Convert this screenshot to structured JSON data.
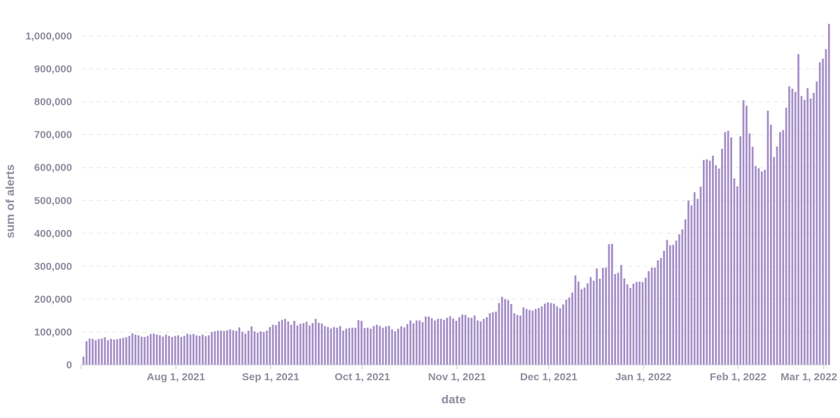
{
  "chart_data": {
    "type": "bar",
    "title": "",
    "xlabel": "date",
    "ylabel": "sum of alerts",
    "x_start": "2021-07-01",
    "x_end": "2022-03-02",
    "ylim": [
      0,
      1050000
    ],
    "y_ticks": [
      {
        "value": 0,
        "label": "0"
      },
      {
        "value": 100000,
        "label": "100,000"
      },
      {
        "value": 200000,
        "label": "200,000"
      },
      {
        "value": 300000,
        "label": "300,000"
      },
      {
        "value": 400000,
        "label": "400,000"
      },
      {
        "value": 500000,
        "label": "500,000"
      },
      {
        "value": 600000,
        "label": "600,000"
      },
      {
        "value": 700000,
        "label": "700,000"
      },
      {
        "value": 800000,
        "label": "800,000"
      },
      {
        "value": 900000,
        "label": "900,000"
      },
      {
        "value": 1000000,
        "label": "1,000,000"
      }
    ],
    "x_ticks": [
      {
        "date": "2021-08-01",
        "label": "Aug 1, 2021"
      },
      {
        "date": "2021-09-01",
        "label": "Sep 1, 2021"
      },
      {
        "date": "2021-10-01",
        "label": "Oct 1, 2021"
      },
      {
        "date": "2021-11-01",
        "label": "Nov 1, 2021"
      },
      {
        "date": "2021-12-01",
        "label": "Dec 1, 2021"
      },
      {
        "date": "2022-01-01",
        "label": "Jan 1, 2022"
      },
      {
        "date": "2022-02-01",
        "label": "Feb 1, 2022"
      },
      {
        "date": "2022-03-01",
        "label": "Mar 1, 2022"
      }
    ],
    "grid": "horizontal dashed",
    "bar_color": "#a48dc7",
    "text_color": "#8d8c9e",
    "gridline_color": "#e6e6e6",
    "values": [
      25000,
      72000,
      80000,
      79000,
      75000,
      79000,
      80000,
      84000,
      75000,
      79000,
      77000,
      78000,
      80000,
      82000,
      84000,
      88000,
      96000,
      92000,
      90000,
      86000,
      85000,
      88000,
      94000,
      95000,
      92000,
      90000,
      86000,
      92000,
      88000,
      85000,
      88000,
      90000,
      85000,
      88000,
      95000,
      92000,
      94000,
      90000,
      88000,
      92000,
      87000,
      90000,
      100000,
      102000,
      104000,
      104000,
      103000,
      105000,
      108000,
      105000,
      103000,
      114000,
      101000,
      95000,
      104000,
      117000,
      102000,
      98000,
      102000,
      100000,
      104000,
      115000,
      122000,
      121000,
      132000,
      137000,
      140000,
      132000,
      122000,
      134000,
      120000,
      125000,
      127000,
      131000,
      120000,
      127000,
      140000,
      128000,
      126000,
      118000,
      115000,
      111000,
      115000,
      113000,
      118000,
      104000,
      110000,
      112000,
      113000,
      113000,
      136000,
      134000,
      112000,
      113000,
      110000,
      118000,
      122000,
      118000,
      113000,
      117000,
      119000,
      108000,
      102000,
      110000,
      117000,
      114000,
      124000,
      135000,
      126000,
      135000,
      135000,
      130000,
      147000,
      147000,
      142000,
      135000,
      140000,
      140000,
      137000,
      143000,
      148000,
      141000,
      134000,
      145000,
      153000,
      152000,
      144000,
      143000,
      150000,
      135000,
      132000,
      140000,
      145000,
      157000,
      160000,
      162000,
      188000,
      207000,
      200000,
      197000,
      185000,
      157000,
      152000,
      150000,
      175000,
      170000,
      167000,
      165000,
      170000,
      173000,
      178000,
      186000,
      190000,
      188000,
      186000,
      178000,
      172000,
      184000,
      198000,
      205000,
      220000,
      272000,
      253000,
      230000,
      235000,
      248000,
      267000,
      256000,
      293000,
      262000,
      295000,
      296000,
      367000,
      368000,
      276000,
      280000,
      304000,
      263000,
      245000,
      234000,
      247000,
      252000,
      253000,
      252000,
      265000,
      285000,
      296000,
      296000,
      318000,
      325000,
      347000,
      380000,
      364000,
      365000,
      378000,
      397000,
      412000,
      443000,
      500000,
      485000,
      525000,
      505000,
      542000,
      623000,
      625000,
      621000,
      636000,
      607000,
      597000,
      657000,
      708000,
      712000,
      692000,
      567000,
      543000,
      695000,
      805000,
      788000,
      704000,
      663000,
      605000,
      598000,
      588000,
      593000,
      773000,
      730000,
      632000,
      664000,
      708000,
      714000,
      782000,
      847000,
      840000,
      830000,
      945000,
      818000,
      806000,
      842000,
      810000,
      827000,
      862000,
      920000,
      931000,
      960000,
      1037000
    ]
  }
}
